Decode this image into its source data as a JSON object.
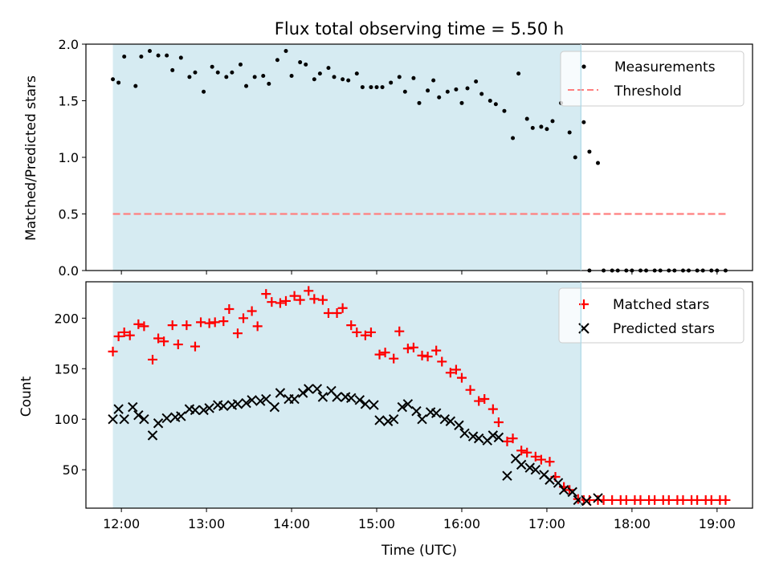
{
  "colors": {
    "span": "#add8e6",
    "matched": "#ff0000",
    "predicted": "#000000",
    "measurement": "#000000",
    "threshold": "#ff7f7f"
  },
  "chart_data": [
    {
      "type": "scatter",
      "title": "Flux total observing time = 5.50 h",
      "xlabel": "",
      "ylabel": "Matched/Predicted stars",
      "ylim": [
        0,
        2.0
      ],
      "yticks": [
        "0.0",
        "0.5",
        "1.0",
        "1.5",
        "2.0"
      ],
      "xlim": [
        "11:35",
        "19:25"
      ],
      "shaded_span": [
        "11:54",
        "17:24"
      ],
      "legend": {
        "position": "top-right",
        "entries": [
          "Measurements",
          "Threshold"
        ]
      },
      "threshold": {
        "name": "Threshold",
        "value": 0.5,
        "x_range": [
          "11:54",
          "19:06"
        ]
      },
      "series": [
        {
          "name": "Measurements",
          "points": [
            [
              "11:54",
              1.69
            ],
            [
              "11:58",
              1.66
            ],
            [
              "12:02",
              1.89
            ],
            [
              "12:10",
              1.63
            ],
            [
              "12:14",
              1.89
            ],
            [
              "12:20",
              1.94
            ],
            [
              "12:26",
              1.9
            ],
            [
              "12:32",
              1.9
            ],
            [
              "12:36",
              1.77
            ],
            [
              "12:42",
              1.88
            ],
            [
              "12:48",
              1.71
            ],
            [
              "12:52",
              1.75
            ],
            [
              "12:58",
              1.58
            ],
            [
              "13:04",
              1.8
            ],
            [
              "13:08",
              1.75
            ],
            [
              "13:14",
              1.71
            ],
            [
              "13:18",
              1.75
            ],
            [
              "13:24",
              1.82
            ],
            [
              "13:28",
              1.63
            ],
            [
              "13:34",
              1.71
            ],
            [
              "13:40",
              1.72
            ],
            [
              "13:44",
              1.65
            ],
            [
              "13:50",
              1.86
            ],
            [
              "13:56",
              1.94
            ],
            [
              "14:00",
              1.72
            ],
            [
              "14:06",
              1.84
            ],
            [
              "14:10",
              1.82
            ],
            [
              "14:16",
              1.69
            ],
            [
              "14:20",
              1.74
            ],
            [
              "14:26",
              1.79
            ],
            [
              "14:30",
              1.71
            ],
            [
              "14:36",
              1.69
            ],
            [
              "14:40",
              1.68
            ],
            [
              "14:46",
              1.74
            ],
            [
              "14:50",
              1.62
            ],
            [
              "14:56",
              1.62
            ],
            [
              "15:00",
              1.62
            ],
            [
              "15:04",
              1.62
            ],
            [
              "15:10",
              1.66
            ],
            [
              "15:16",
              1.71
            ],
            [
              "15:20",
              1.58
            ],
            [
              "15:26",
              1.7
            ],
            [
              "15:30",
              1.48
            ],
            [
              "15:36",
              1.59
            ],
            [
              "15:40",
              1.68
            ],
            [
              "15:44",
              1.53
            ],
            [
              "15:50",
              1.58
            ],
            [
              "15:56",
              1.6
            ],
            [
              "16:00",
              1.48
            ],
            [
              "16:04",
              1.61
            ],
            [
              "16:10",
              1.67
            ],
            [
              "16:14",
              1.56
            ],
            [
              "16:20",
              1.5
            ],
            [
              "16:24",
              1.47
            ],
            [
              "16:30",
              1.41
            ],
            [
              "16:36",
              1.17
            ],
            [
              "16:40",
              1.74
            ],
            [
              "16:46",
              1.34
            ],
            [
              "16:50",
              1.26
            ],
            [
              "16:56",
              1.27
            ],
            [
              "17:00",
              1.25
            ],
            [
              "17:04",
              1.32
            ],
            [
              "17:10",
              1.48
            ],
            [
              "17:16",
              1.22
            ],
            [
              "17:20",
              1.0
            ],
            [
              "17:26",
              1.31
            ],
            [
              "17:30",
              1.05
            ],
            [
              "17:36",
              0.95
            ],
            [
              "17:30",
              0.0
            ],
            [
              "17:40",
              0.0
            ],
            [
              "17:46",
              0.0
            ],
            [
              "17:50",
              0.0
            ],
            [
              "17:56",
              0.0
            ],
            [
              "18:00",
              0.0
            ],
            [
              "18:06",
              0.0
            ],
            [
              "18:10",
              0.0
            ],
            [
              "18:16",
              0.0
            ],
            [
              "18:20",
              0.0
            ],
            [
              "18:26",
              0.0
            ],
            [
              "18:30",
              0.0
            ],
            [
              "18:36",
              0.0
            ],
            [
              "18:40",
              0.0
            ],
            [
              "18:46",
              0.0
            ],
            [
              "18:50",
              0.0
            ],
            [
              "18:56",
              0.0
            ],
            [
              "19:00",
              0.0
            ],
            [
              "19:06",
              0.0
            ]
          ]
        }
      ]
    },
    {
      "type": "scatter",
      "title": "",
      "xlabel": "Time (UTC)",
      "ylabel": "Count",
      "ylim": [
        12,
        236
      ],
      "yticks": [
        "50",
        "100",
        "150",
        "200"
      ],
      "xlim": [
        "11:35",
        "19:25"
      ],
      "xticks": [
        "12:00",
        "13:00",
        "14:00",
        "15:00",
        "16:00",
        "17:00",
        "18:00",
        "19:00"
      ],
      "shaded_span": [
        "11:54",
        "17:24"
      ],
      "legend": {
        "position": "top-right",
        "entries": [
          "Matched stars",
          "Predicted stars"
        ]
      },
      "series": [
        {
          "name": "Matched stars",
          "points": [
            [
              "11:54",
              167
            ],
            [
              "11:58",
              182
            ],
            [
              "12:02",
              186
            ],
            [
              "12:06",
              183
            ],
            [
              "12:12",
              194
            ],
            [
              "12:16",
              192
            ],
            [
              "12:22",
              159
            ],
            [
              "12:26",
              180
            ],
            [
              "12:30",
              177
            ],
            [
              "12:36",
              193
            ],
            [
              "12:40",
              174
            ],
            [
              "12:46",
              193
            ],
            [
              "12:52",
              172
            ],
            [
              "12:56",
              196
            ],
            [
              "13:02",
              195
            ],
            [
              "13:06",
              196
            ],
            [
              "13:12",
              197
            ],
            [
              "13:16",
              209
            ],
            [
              "13:22",
              185
            ],
            [
              "13:26",
              200
            ],
            [
              "13:32",
              207
            ],
            [
              "13:36",
              192
            ],
            [
              "13:42",
              224
            ],
            [
              "13:46",
              216
            ],
            [
              "13:52",
              215
            ],
            [
              "13:56",
              217
            ],
            [
              "14:02",
              222
            ],
            [
              "14:06",
              218
            ],
            [
              "14:12",
              227
            ],
            [
              "14:16",
              219
            ],
            [
              "14:22",
              218
            ],
            [
              "14:26",
              205
            ],
            [
              "14:32",
              205
            ],
            [
              "14:36",
              210
            ],
            [
              "14:42",
              193
            ],
            [
              "14:46",
              186
            ],
            [
              "14:52",
              183
            ],
            [
              "14:56",
              186
            ],
            [
              "15:02",
              164
            ],
            [
              "15:06",
              166
            ],
            [
              "15:12",
              160
            ],
            [
              "15:16",
              187
            ],
            [
              "15:22",
              170
            ],
            [
              "15:26",
              171
            ],
            [
              "15:32",
              163
            ],
            [
              "15:36",
              162
            ],
            [
              "15:42",
              168
            ],
            [
              "15:46",
              157
            ],
            [
              "15:52",
              146
            ],
            [
              "15:56",
              149
            ],
            [
              "16:00",
              141
            ],
            [
              "16:06",
              129
            ],
            [
              "16:12",
              118
            ],
            [
              "16:16",
              120
            ],
            [
              "16:22",
              110
            ],
            [
              "16:26",
              97
            ],
            [
              "16:32",
              78
            ],
            [
              "16:36",
              81
            ],
            [
              "16:42",
              69
            ],
            [
              "16:46",
              67
            ],
            [
              "16:52",
              63
            ],
            [
              "16:56",
              60
            ],
            [
              "17:02",
              58
            ],
            [
              "17:06",
              43
            ],
            [
              "17:12",
              33
            ],
            [
              "17:16",
              30
            ],
            [
              "17:22",
              21
            ],
            [
              "17:26",
              20
            ],
            [
              "17:30",
              20
            ],
            [
              "17:36",
              20
            ],
            [
              "17:40",
              20
            ],
            [
              "17:46",
              20
            ],
            [
              "17:52",
              20
            ],
            [
              "17:56",
              20
            ],
            [
              "18:02",
              20
            ],
            [
              "18:06",
              20
            ],
            [
              "18:12",
              20
            ],
            [
              "18:16",
              20
            ],
            [
              "18:22",
              20
            ],
            [
              "18:26",
              20
            ],
            [
              "18:32",
              20
            ],
            [
              "18:36",
              20
            ],
            [
              "18:42",
              20
            ],
            [
              "18:46",
              20
            ],
            [
              "18:52",
              20
            ],
            [
              "18:56",
              20
            ],
            [
              "19:02",
              20
            ],
            [
              "19:06",
              20
            ]
          ]
        },
        {
          "name": "Predicted stars",
          "points": [
            [
              "11:54",
              100
            ],
            [
              "11:58",
              110
            ],
            [
              "12:02",
              100
            ],
            [
              "12:08",
              112
            ],
            [
              "12:12",
              104
            ],
            [
              "12:16",
              100
            ],
            [
              "12:22",
              84
            ],
            [
              "12:26",
              96
            ],
            [
              "12:32",
              101
            ],
            [
              "12:38",
              102
            ],
            [
              "12:42",
              103
            ],
            [
              "12:48",
              110
            ],
            [
              "12:52",
              109
            ],
            [
              "12:58",
              109
            ],
            [
              "13:02",
              111
            ],
            [
              "13:08",
              114
            ],
            [
              "13:12",
              113
            ],
            [
              "13:18",
              114
            ],
            [
              "13:22",
              115
            ],
            [
              "13:28",
              116
            ],
            [
              "13:32",
              119
            ],
            [
              "13:38",
              118
            ],
            [
              "13:42",
              120
            ],
            [
              "13:48",
              112
            ],
            [
              "13:52",
              126
            ],
            [
              "13:58",
              120
            ],
            [
              "14:02",
              120
            ],
            [
              "14:08",
              126
            ],
            [
              "14:12",
              130
            ],
            [
              "14:18",
              130
            ],
            [
              "14:22",
              122
            ],
            [
              "14:28",
              128
            ],
            [
              "14:32",
              122
            ],
            [
              "14:38",
              122
            ],
            [
              "14:42",
              121
            ],
            [
              "14:48",
              119
            ],
            [
              "14:52",
              115
            ],
            [
              "14:58",
              114
            ],
            [
              "15:02",
              99
            ],
            [
              "15:08",
              98
            ],
            [
              "15:12",
              100
            ],
            [
              "15:18",
              112
            ],
            [
              "15:22",
              115
            ],
            [
              "15:28",
              108
            ],
            [
              "15:32",
              100
            ],
            [
              "15:38",
              107
            ],
            [
              "15:42",
              106
            ],
            [
              "15:48",
              100
            ],
            [
              "15:52",
              98
            ],
            [
              "15:58",
              94
            ],
            [
              "16:02",
              86
            ],
            [
              "16:08",
              83
            ],
            [
              "16:12",
              81
            ],
            [
              "16:18",
              79
            ],
            [
              "16:22",
              84
            ],
            [
              "16:26",
              82
            ],
            [
              "16:32",
              44
            ],
            [
              "16:38",
              61
            ],
            [
              "16:42",
              55
            ],
            [
              "16:48",
              52
            ],
            [
              "16:52",
              50
            ],
            [
              "16:58",
              45
            ],
            [
              "17:02",
              40
            ],
            [
              "17:08",
              37
            ],
            [
              "17:12",
              30
            ],
            [
              "17:18",
              28
            ],
            [
              "17:22",
              20
            ],
            [
              "17:28",
              19
            ],
            [
              "17:36",
              22
            ]
          ]
        }
      ]
    }
  ]
}
